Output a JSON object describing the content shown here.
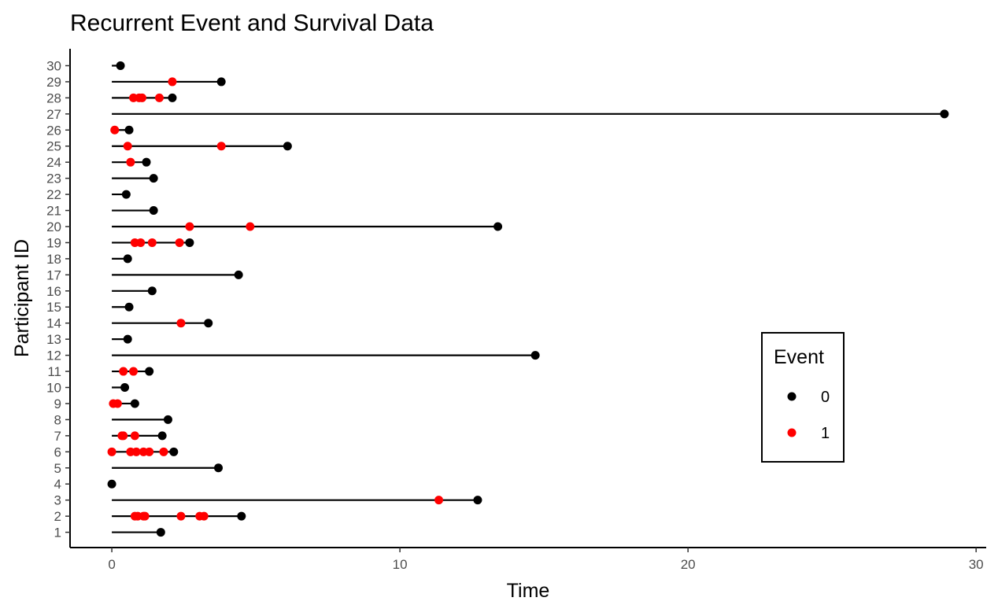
{
  "chart_data": {
    "type": "scatter",
    "title": "Recurrent Event and Survival Data",
    "xlabel": "Time",
    "ylabel": "Participant ID",
    "xlim": [
      -1.45,
      30.35
    ],
    "ylim": [
      0.05,
      31.05
    ],
    "x_ticks": [
      0,
      10,
      20,
      30
    ],
    "y_ticks": [
      1,
      2,
      3,
      4,
      5,
      6,
      7,
      8,
      9,
      10,
      11,
      12,
      13,
      14,
      15,
      16,
      17,
      18,
      19,
      20,
      21,
      22,
      23,
      24,
      25,
      26,
      27,
      28,
      29,
      30
    ],
    "grid": false,
    "legend": {
      "title": "Event",
      "position": "right",
      "entries": [
        {
          "label": "0",
          "color": "#000000"
        },
        {
          "label": "1",
          "color": "#ff0000"
        }
      ]
    },
    "colors": {
      "event_0": "#000000",
      "event_1": "#ff0000"
    },
    "participants": [
      {
        "id": 1,
        "end": 1.7,
        "events": []
      },
      {
        "id": 2,
        "end": 4.5,
        "events": [
          0.8,
          0.9,
          1.1,
          1.15,
          2.4,
          3.05,
          3.2
        ]
      },
      {
        "id": 3,
        "end": 12.7,
        "events": [
          11.35
        ]
      },
      {
        "id": 4,
        "end": 0.0,
        "events": []
      },
      {
        "id": 5,
        "end": 3.7,
        "events": []
      },
      {
        "id": 6,
        "end": 2.15,
        "events": [
          0.0,
          0.65,
          0.85,
          1.1,
          1.3,
          1.8
        ]
      },
      {
        "id": 7,
        "end": 1.75,
        "events": [
          0.35,
          0.4,
          0.8
        ]
      },
      {
        "id": 8,
        "end": 1.95,
        "events": []
      },
      {
        "id": 9,
        "end": 0.8,
        "events": [
          0.05,
          0.2
        ]
      },
      {
        "id": 10,
        "end": 0.45,
        "events": []
      },
      {
        "id": 11,
        "end": 1.3,
        "events": [
          0.4,
          0.75
        ]
      },
      {
        "id": 12,
        "end": 14.7,
        "events": []
      },
      {
        "id": 13,
        "end": 0.55,
        "events": []
      },
      {
        "id": 14,
        "end": 3.35,
        "events": [
          2.4
        ]
      },
      {
        "id": 15,
        "end": 0.6,
        "events": []
      },
      {
        "id": 16,
        "end": 1.4,
        "events": []
      },
      {
        "id": 17,
        "end": 4.4,
        "events": []
      },
      {
        "id": 18,
        "end": 0.55,
        "events": []
      },
      {
        "id": 19,
        "end": 2.7,
        "events": [
          0.8,
          1.0,
          1.4,
          2.35
        ]
      },
      {
        "id": 20,
        "end": 13.4,
        "events": [
          2.7,
          4.8
        ]
      },
      {
        "id": 21,
        "end": 1.45,
        "events": []
      },
      {
        "id": 22,
        "end": 0.5,
        "events": []
      },
      {
        "id": 23,
        "end": 1.45,
        "events": []
      },
      {
        "id": 24,
        "end": 1.2,
        "events": [
          0.65
        ]
      },
      {
        "id": 25,
        "end": 6.1,
        "events": [
          0.55,
          3.8
        ]
      },
      {
        "id": 26,
        "end": 0.6,
        "events": [
          0.1
        ]
      },
      {
        "id": 27,
        "end": 28.9,
        "events": []
      },
      {
        "id": 28,
        "end": 2.1,
        "events": [
          0.75,
          0.95,
          1.05,
          1.65
        ]
      },
      {
        "id": 29,
        "end": 3.8,
        "events": [
          2.1
        ]
      },
      {
        "id": 30,
        "end": 0.3,
        "events": []
      }
    ]
  }
}
